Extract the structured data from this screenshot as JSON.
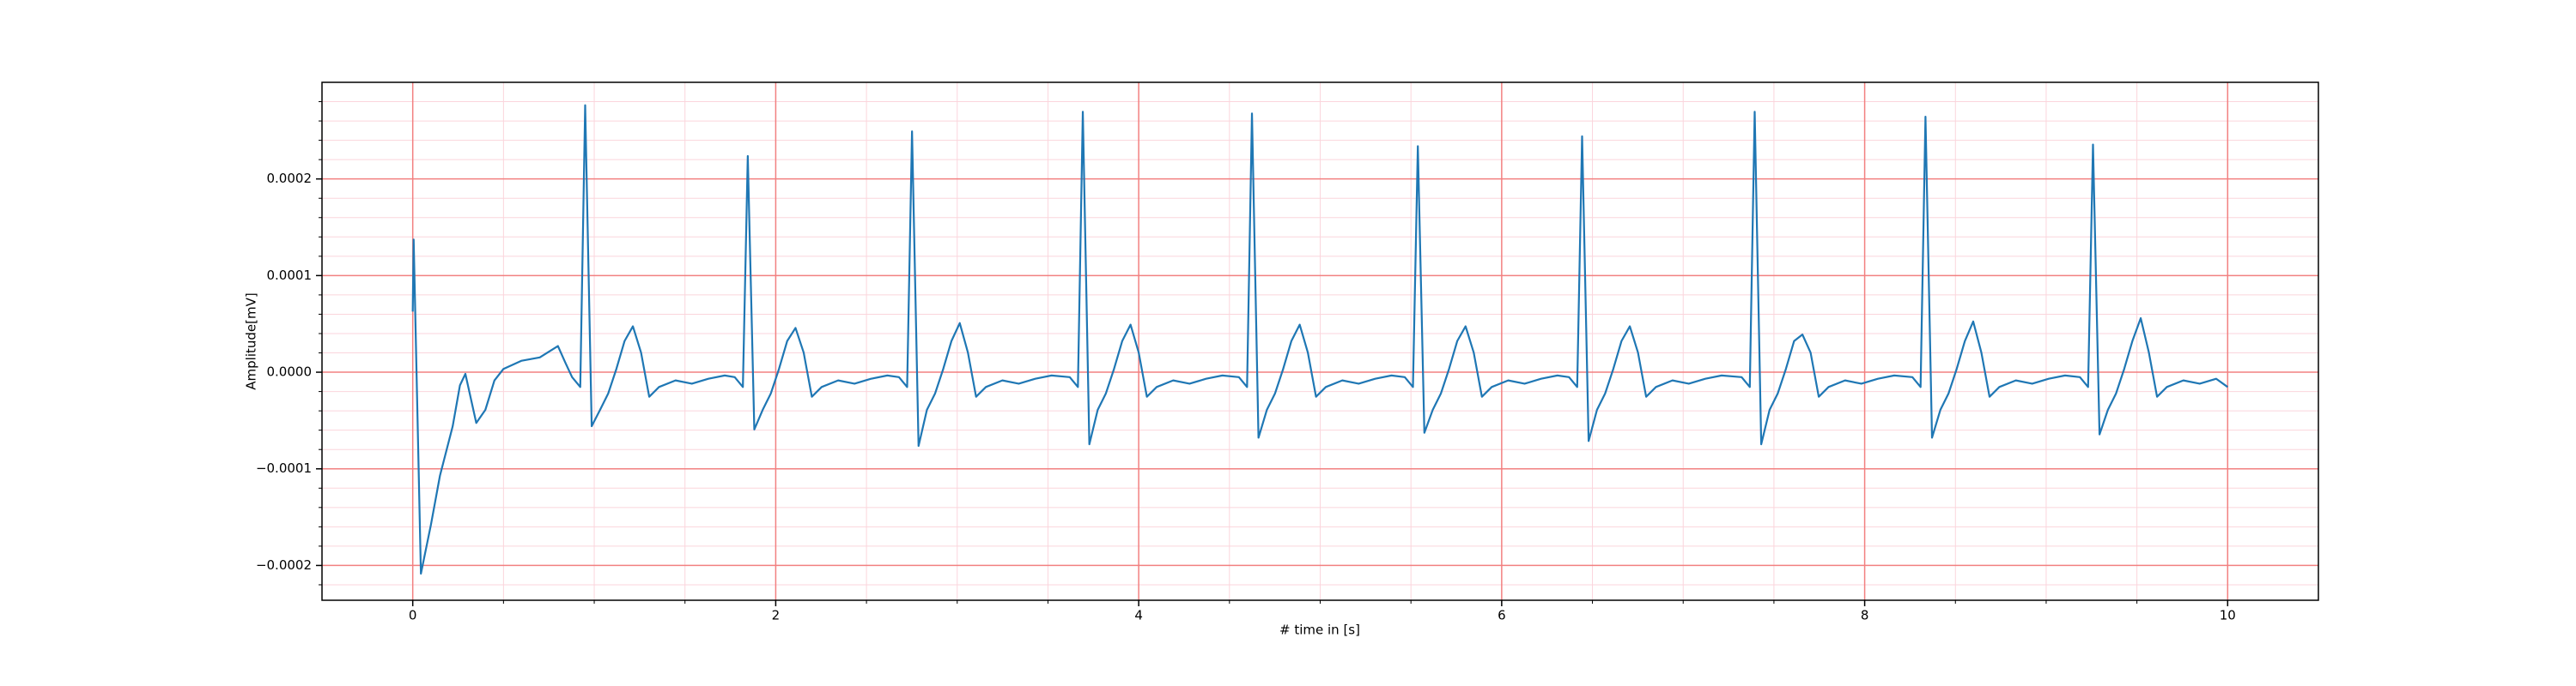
{
  "chart_data": {
    "type": "line",
    "xlabel": "# time in [s]",
    "ylabel": "Amplitude[mV]",
    "xlim": [
      -0.5,
      10.5
    ],
    "ylim": [
      -0.000236,
      0.0003
    ],
    "xticks": [
      0,
      2,
      4,
      6,
      8,
      10
    ],
    "yticks": [
      {
        "value": -0.0002,
        "label": "−0.0002"
      },
      {
        "value": -0.0001,
        "label": "−0.0001"
      },
      {
        "value": 0,
        "label": "0.0000"
      },
      {
        "value": 0.0001,
        "label": "0.0001"
      },
      {
        "value": 0.0002,
        "label": "0.0002"
      }
    ],
    "xminor_ticks": [
      0.5,
      1,
      1.5,
      2.5,
      3,
      3.5,
      4.5,
      5,
      5.5,
      6.5,
      7,
      7.5,
      8.5,
      9,
      9.5
    ],
    "yminor_ticks": [
      -0.00022,
      -0.00018,
      -0.00016,
      -0.00014,
      -0.00012,
      -8e-05,
      -6e-05,
      -4e-05,
      -2e-05,
      2e-05,
      4e-05,
      6e-05,
      8e-05,
      0.00012,
      0.00014,
      0.00016,
      0.00018,
      0.00022,
      0.00024,
      0.00026,
      0.00028
    ],
    "grid": true,
    "major_grid_color": "#f28080",
    "minor_grid_color": "#fbd5dc",
    "x": [
      0,
      0.005,
      0.045,
      0.1,
      0.15,
      0.22,
      0.26,
      0.29,
      0.35,
      0.4,
      0.45,
      0.5,
      0.6,
      0.7,
      0.8,
      0.84,
      0.878,
      0.923,
      0.95,
      0.986,
      1.032,
      1.077,
      1.122,
      1.167,
      1.213,
      1.258,
      1.303,
      1.357,
      1.448,
      1.538,
      1.629,
      1.719,
      1.774,
      1.819,
      1.846,
      1.882,
      1.928,
      1.973,
      2.018,
      2.063,
      2.109,
      2.154,
      2.199,
      2.253,
      2.344,
      2.434,
      2.525,
      2.615,
      2.679,
      2.724,
      2.751,
      2.787,
      2.833,
      2.878,
      2.923,
      2.968,
      3.014,
      3.059,
      3.104,
      3.158,
      3.249,
      3.339,
      3.43,
      3.52,
      3.62,
      3.665,
      3.692,
      3.728,
      3.774,
      3.819,
      3.864,
      3.909,
      3.955,
      4.0,
      4.045,
      4.099,
      4.19,
      4.28,
      4.371,
      4.461,
      4.552,
      4.597,
      4.624,
      4.66,
      4.706,
      4.751,
      4.796,
      4.841,
      4.887,
      4.932,
      4.977,
      5.031,
      5.122,
      5.212,
      5.303,
      5.393,
      5.466,
      5.511,
      5.538,
      5.574,
      5.62,
      5.665,
      5.71,
      5.755,
      5.801,
      5.846,
      5.891,
      5.945,
      6.036,
      6.126,
      6.217,
      6.307,
      6.371,
      6.416,
      6.443,
      6.479,
      6.525,
      6.57,
      6.615,
      6.66,
      6.706,
      6.751,
      6.796,
      6.85,
      6.941,
      7.031,
      7.122,
      7.212,
      7.322,
      7.367,
      7.394,
      7.43,
      7.476,
      7.521,
      7.566,
      7.611,
      7.657,
      7.702,
      7.747,
      7.801,
      7.892,
      7.982,
      8.073,
      8.163,
      8.263,
      8.308,
      8.335,
      8.371,
      8.417,
      8.462,
      8.507,
      8.552,
      8.598,
      8.643,
      8.688,
      8.742,
      8.833,
      8.923,
      9.014,
      9.104,
      9.186,
      9.231,
      9.258,
      9.294,
      9.34,
      9.385,
      9.43,
      9.475,
      9.521,
      9.566,
      9.611,
      9.665,
      9.756,
      9.846,
      9.937,
      10.0
    ],
    "series": [
      {
        "color": "#1f77b4",
        "values": [
          6.27e-05,
          0.0001373,
          -0.0002085,
          -0.000158,
          -0.000107,
          -5.6e-05,
          -1.36e-05,
          -1.7e-06,
          -5.25e-05,
          -3.9e-05,
          -8.5e-06,
          3.4e-06,
          1.19e-05,
          1.53e-05,
          2.71e-05,
          1.02e-05,
          -5.1e-06,
          -1.53e-05,
          0.0002763,
          -5.59e-05,
          -3.9e-05,
          -2.2e-05,
          3.4e-06,
          3.22e-05,
          4.75e-05,
          2.03e-05,
          -2.54e-05,
          -1.53e-05,
          -8.5e-06,
          -1.19e-05,
          -6.8e-06,
          -3.4e-06,
          -5.1e-06,
          -1.53e-05,
          0.0002237,
          -5.93e-05,
          -3.9e-05,
          -2.2e-05,
          3.4e-06,
          3.22e-05,
          4.58e-05,
          2.03e-05,
          -2.54e-05,
          -1.53e-05,
          -8.5e-06,
          -1.19e-05,
          -6.8e-06,
          -3.4e-06,
          -5.1e-06,
          -1.53e-05,
          0.0002492,
          -7.63e-05,
          -3.9e-05,
          -2.2e-05,
          3.4e-06,
          3.22e-05,
          5.08e-05,
          2.03e-05,
          -2.54e-05,
          -1.53e-05,
          -8.5e-06,
          -1.19e-05,
          -6.8e-06,
          -3.4e-06,
          -5.1e-06,
          -1.53e-05,
          0.0002695,
          -7.46e-05,
          -3.9e-05,
          -2.2e-05,
          3.4e-06,
          3.22e-05,
          4.92e-05,
          2.03e-05,
          -2.54e-05,
          -1.53e-05,
          -8.5e-06,
          -1.19e-05,
          -6.8e-06,
          -3.4e-06,
          -5.1e-06,
          -1.53e-05,
          0.0002678,
          -6.78e-05,
          -3.9e-05,
          -2.2e-05,
          3.4e-06,
          3.22e-05,
          4.92e-05,
          2.03e-05,
          -2.54e-05,
          -1.53e-05,
          -8.5e-06,
          -1.19e-05,
          -6.8e-06,
          -3.4e-06,
          -5.1e-06,
          -1.53e-05,
          0.0002339,
          -6.27e-05,
          -3.9e-05,
          -2.2e-05,
          3.4e-06,
          3.22e-05,
          4.75e-05,
          2.03e-05,
          -2.54e-05,
          -1.53e-05,
          -8.5e-06,
          -1.19e-05,
          -6.8e-06,
          -3.4e-06,
          -5.1e-06,
          -1.53e-05,
          0.0002441,
          -7.12e-05,
          -3.9e-05,
          -2.2e-05,
          3.4e-06,
          3.22e-05,
          4.75e-05,
          2.03e-05,
          -2.54e-05,
          -1.53e-05,
          -8.5e-06,
          -1.19e-05,
          -6.8e-06,
          -3.4e-06,
          -5.1e-06,
          -1.53e-05,
          0.0002695,
          -7.46e-05,
          -3.9e-05,
          -2.2e-05,
          3.4e-06,
          3.22e-05,
          3.9e-05,
          2.03e-05,
          -2.54e-05,
          -1.53e-05,
          -8.5e-06,
          -1.19e-05,
          -6.8e-06,
          -3.4e-06,
          -5.1e-06,
          -1.53e-05,
          0.0002644,
          -6.78e-05,
          -3.9e-05,
          -2.2e-05,
          3.4e-06,
          3.22e-05,
          5.25e-05,
          2.03e-05,
          -2.54e-05,
          -1.53e-05,
          -8.5e-06,
          -1.19e-05,
          -6.8e-06,
          -3.4e-06,
          -5.1e-06,
          -1.53e-05,
          0.0002356,
          -6.44e-05,
          -3.9e-05,
          -2.2e-05,
          3.4e-06,
          3.22e-05,
          5.59e-05,
          2.03e-05,
          -2.54e-05,
          -1.53e-05,
          -8.5e-06,
          -1.19e-05,
          -6.8e-06,
          -1.53e-05
        ]
      }
    ]
  }
}
